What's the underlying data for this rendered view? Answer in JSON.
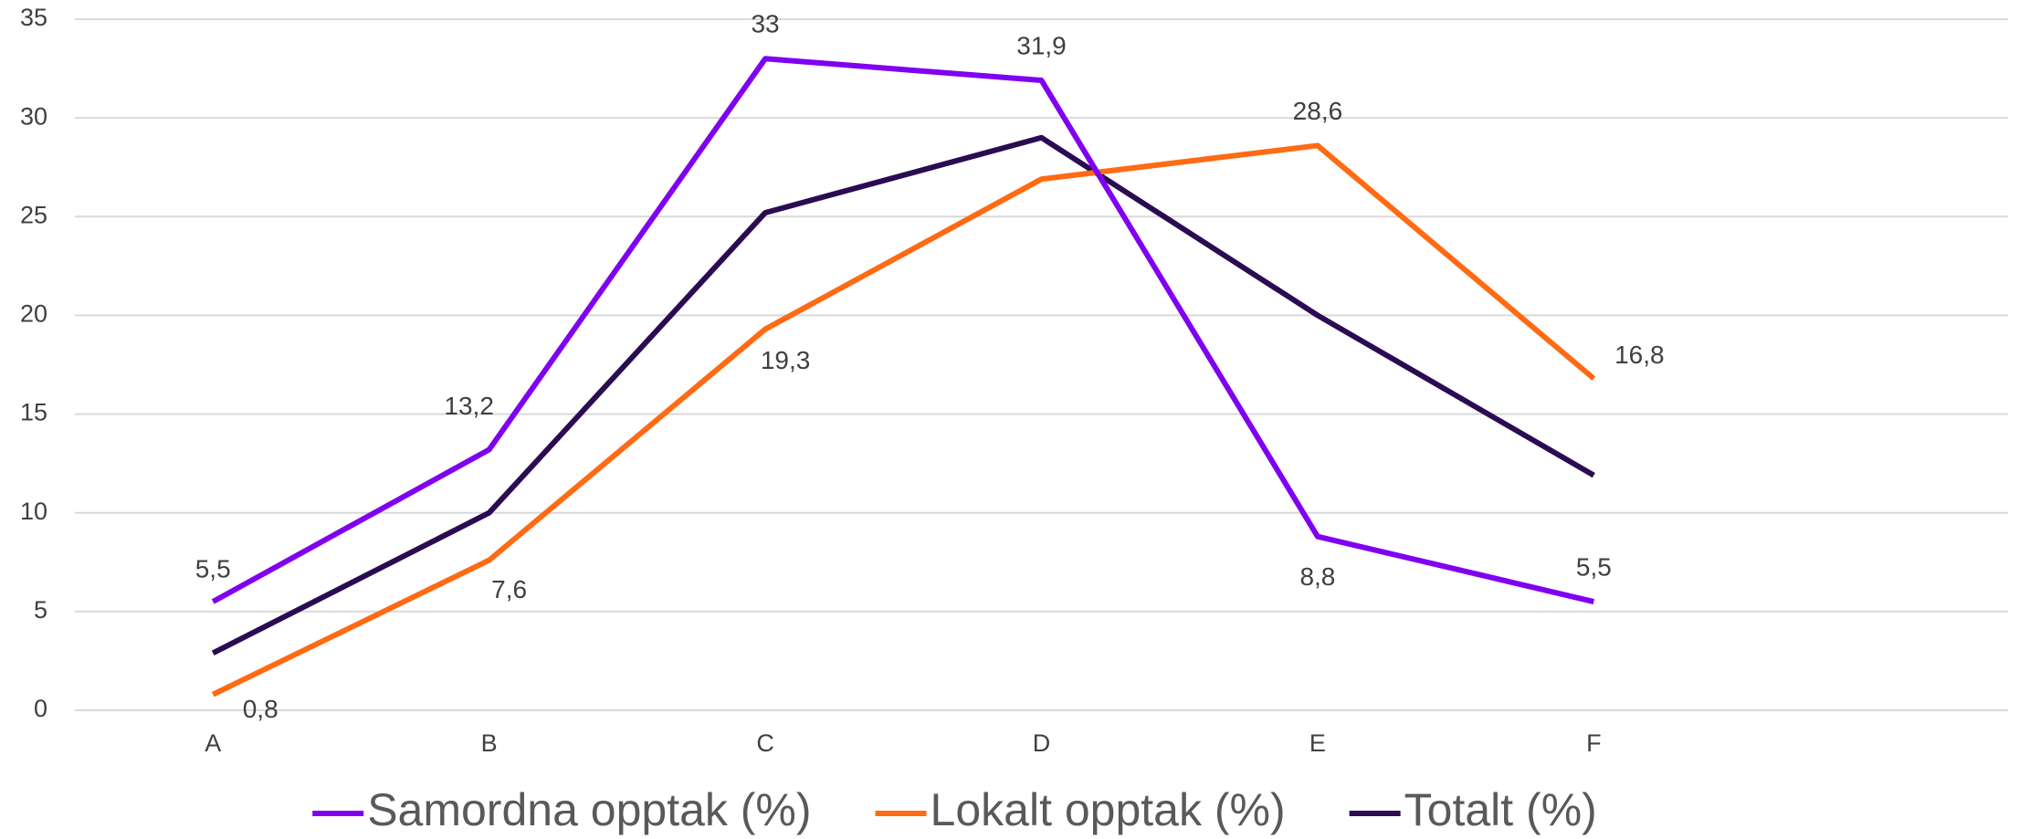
{
  "chart_data": {
    "type": "line",
    "categories": [
      "A",
      "B",
      "C",
      "D",
      "E",
      "F",
      null
    ],
    "series": [
      {
        "name": "Samordna opptak (%)",
        "color": "#8000f0",
        "values": [
          5.5,
          13.2,
          33,
          31.9,
          8.8,
          5.5,
          null
        ],
        "value_labels": [
          "5,5",
          "13,2",
          "33",
          "31,9",
          "8,8",
          "5,5",
          null
        ]
      },
      {
        "name": "Lokalt opptak (%)",
        "color": "#ff6a13",
        "values": [
          0.8,
          7.6,
          19.3,
          26.9,
          28.6,
          16.8,
          null
        ],
        "value_labels": [
          "0,8",
          "7,6",
          "19,3",
          null,
          "28,6",
          "16,8",
          null
        ]
      },
      {
        "name": "Totalt (%)",
        "color": "#2b0b52",
        "values": [
          2.9,
          10,
          25.2,
          29,
          20,
          11.9,
          null
        ]
      }
    ],
    "ylim": [
      0,
      35
    ],
    "yticks": [
      0,
      5,
      10,
      15,
      20,
      25,
      30,
      35
    ],
    "grid": true,
    "legend": "bottom"
  }
}
